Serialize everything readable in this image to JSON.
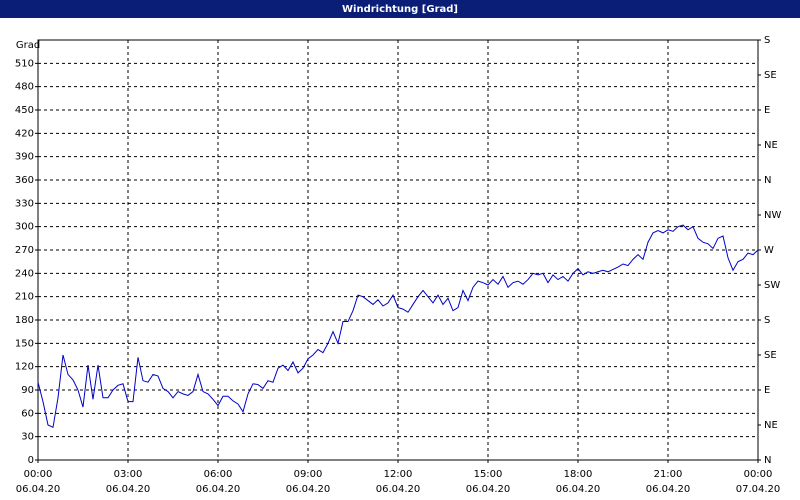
{
  "chart_data": {
    "type": "line",
    "title": "Windrichtung [Grad]",
    "y_label": "Grad",
    "color": "#0000c8",
    "grid": true,
    "xlim": [
      0,
      1440
    ],
    "xticks": [
      {
        "value": 0,
        "label": "00:00",
        "date": "06.04.20"
      },
      {
        "value": 180,
        "label": "03:00",
        "date": "06.04.20"
      },
      {
        "value": 360,
        "label": "06:00",
        "date": "06.04.20"
      },
      {
        "value": 540,
        "label": "09:00",
        "date": "06.04.20"
      },
      {
        "value": 720,
        "label": "12:00",
        "date": "06.04.20"
      },
      {
        "value": 900,
        "label": "15:00",
        "date": "06.04.20"
      },
      {
        "value": 1080,
        "label": "18:00",
        "date": "06.04.20"
      },
      {
        "value": 1260,
        "label": "21:00",
        "date": "06.04.20"
      },
      {
        "value": 1440,
        "label": "00:00",
        "date": "07.04.20"
      }
    ],
    "ylim": [
      0,
      540
    ],
    "yticks": [
      0,
      30,
      60,
      90,
      120,
      150,
      180,
      210,
      240,
      270,
      300,
      330,
      360,
      390,
      420,
      450,
      480,
      510
    ],
    "y2lim": [
      0,
      540
    ],
    "y2ticks": [
      {
        "value": 0,
        "label": "N"
      },
      {
        "value": 45,
        "label": "NE"
      },
      {
        "value": 90,
        "label": "E"
      },
      {
        "value": 135,
        "label": "SE"
      },
      {
        "value": 180,
        "label": "S"
      },
      {
        "value": 225,
        "label": "SW"
      },
      {
        "value": 270,
        "label": "W"
      },
      {
        "value": 315,
        "label": "NW"
      },
      {
        "value": 360,
        "label": "N"
      },
      {
        "value": 405,
        "label": "NE"
      },
      {
        "value": 450,
        "label": "E"
      },
      {
        "value": 495,
        "label": "SE"
      },
      {
        "value": 540,
        "label": "S"
      }
    ],
    "x": [
      0,
      10,
      20,
      30,
      40,
      50,
      60,
      70,
      80,
      90,
      100,
      110,
      120,
      130,
      140,
      150,
      160,
      170,
      180,
      190,
      200,
      210,
      220,
      230,
      240,
      250,
      260,
      270,
      280,
      290,
      300,
      310,
      320,
      330,
      340,
      350,
      360,
      370,
      380,
      390,
      400,
      410,
      420,
      430,
      440,
      450,
      460,
      470,
      480,
      490,
      500,
      510,
      520,
      530,
      540,
      550,
      560,
      570,
      580,
      590,
      600,
      610,
      620,
      630,
      640,
      650,
      660,
      670,
      680,
      690,
      700,
      710,
      720,
      730,
      740,
      750,
      760,
      770,
      780,
      790,
      800,
      810,
      820,
      830,
      840,
      850,
      860,
      870,
      880,
      890,
      900,
      910,
      920,
      930,
      940,
      950,
      960,
      970,
      980,
      990,
      1000,
      1010,
      1020,
      1030,
      1040,
      1050,
      1060,
      1070,
      1080,
      1090,
      1100,
      1110,
      1120,
      1130,
      1140,
      1150,
      1160,
      1170,
      1180,
      1190,
      1200,
      1210,
      1220,
      1230,
      1240,
      1250,
      1260,
      1270,
      1280,
      1290,
      1300,
      1310,
      1320,
      1330,
      1340,
      1350,
      1360,
      1370,
      1380,
      1390,
      1400,
      1410,
      1420,
      1430,
      1440
    ],
    "values": [
      100,
      75,
      45,
      42,
      80,
      135,
      110,
      103,
      90,
      68,
      122,
      78,
      122,
      80,
      80,
      90,
      96,
      98,
      75,
      75,
      132,
      102,
      100,
      110,
      108,
      92,
      88,
      80,
      88,
      85,
      83,
      88,
      110,
      88,
      85,
      78,
      70,
      82,
      82,
      76,
      72,
      62,
      85,
      98,
      97,
      92,
      102,
      100,
      118,
      122,
      115,
      126,
      112,
      118,
      130,
      135,
      142,
      138,
      150,
      165,
      150,
      178,
      178,
      192,
      212,
      210,
      205,
      200,
      206,
      198,
      202,
      212,
      196,
      194,
      190,
      200,
      210,
      218,
      210,
      202,
      212,
      200,
      208,
      192,
      196,
      218,
      205,
      222,
      230,
      228,
      225,
      232,
      226,
      236,
      222,
      228,
      230,
      226,
      232,
      240,
      238,
      240,
      228,
      238,
      232,
      236,
      230,
      240,
      246,
      238,
      242,
      240,
      242,
      244,
      242,
      245,
      248,
      252,
      250,
      258,
      264,
      258,
      280,
      292,
      295,
      292,
      296,
      294,
      300,
      302,
      296,
      300,
      285,
      280,
      278,
      272,
      285,
      288,
      260,
      244,
      255,
      258,
      266,
      264,
      270
    ]
  }
}
